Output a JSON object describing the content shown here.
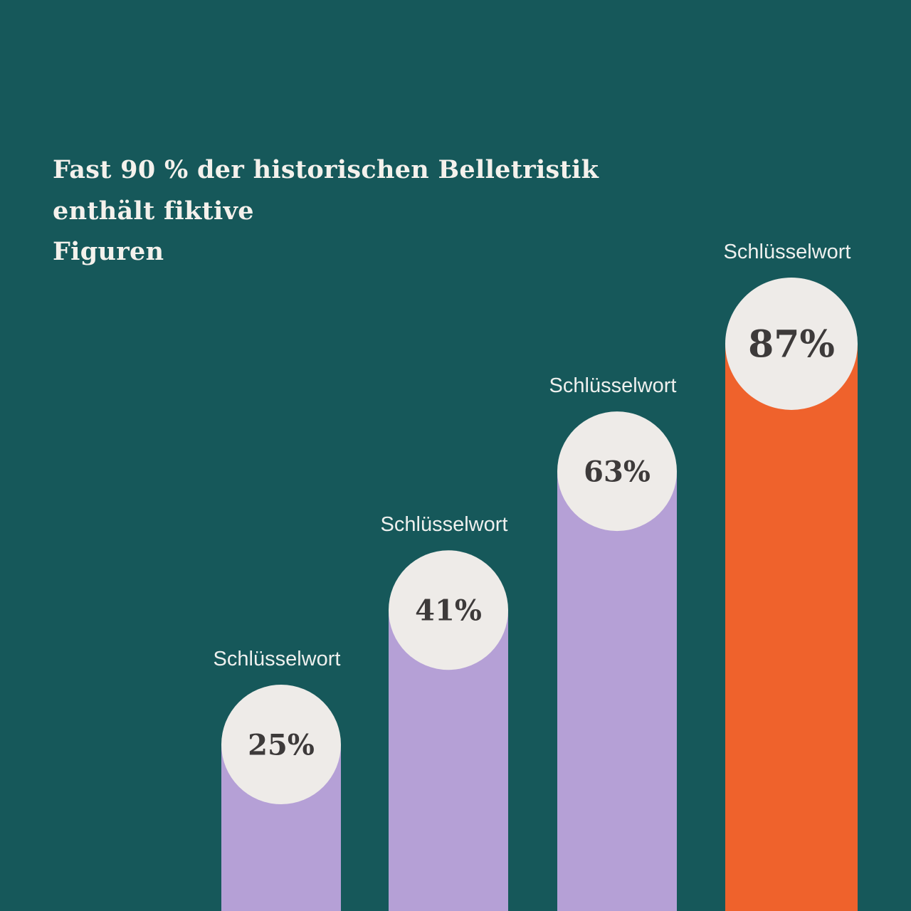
{
  "chart_data": {
    "type": "bar",
    "title_lines": [
      "Fast 90 % der historischen Belletristik",
      "enthält fiktive",
      "Figuren"
    ],
    "categories": [
      "Schlüsselwort",
      "Schlüsselwort",
      "Schlüsselwort",
      "Schlüsselwort"
    ],
    "values": [
      25,
      41,
      63,
      87
    ],
    "value_labels": [
      "25%",
      "41%",
      "63%",
      "87%"
    ],
    "unit": "%",
    "highlight_index": 3,
    "grid": false,
    "colors": {
      "background": "#16585a",
      "bar": "#b5a0d6",
      "highlight_bar": "#ef622c",
      "circle": "#eeebe8",
      "value_text": "#3d3a3a",
      "label_text": "#eef0ee",
      "title_text": "#f4f1ec"
    }
  }
}
